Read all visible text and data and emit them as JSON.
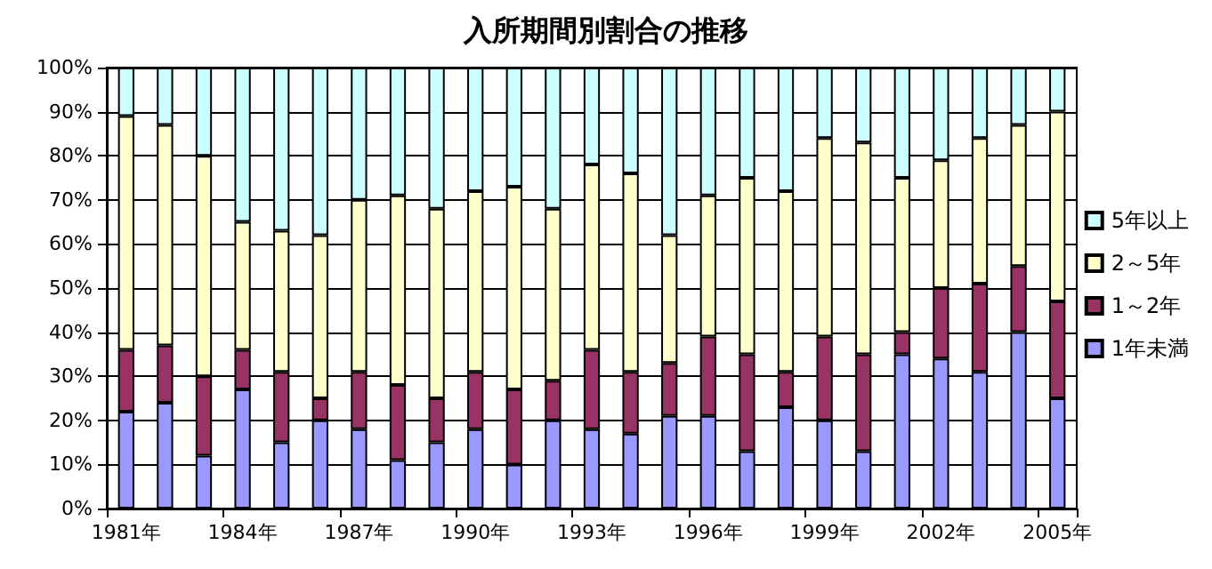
{
  "chart_data": {
    "type": "bar",
    "title": "入所期間別割合の推移",
    "stacked": true,
    "grid": "y",
    "legend": "right",
    "categories": [
      "1981年",
      null,
      null,
      "1984年",
      null,
      null,
      "1987年",
      null,
      null,
      "1990年",
      null,
      null,
      "1993年",
      null,
      null,
      "1996年",
      null,
      null,
      "1999年",
      null,
      null,
      "2002年",
      null,
      null,
      "2005年"
    ],
    "ylim": [
      0,
      100
    ],
    "yticks": [
      {
        "value": 0,
        "label": "0%"
      },
      {
        "value": 10,
        "label": "10%"
      },
      {
        "value": 20,
        "label": "20%"
      },
      {
        "value": 30,
        "label": "30%"
      },
      {
        "value": 40,
        "label": "40%"
      },
      {
        "value": 50,
        "label": "50%"
      },
      {
        "value": 60,
        "label": "60%"
      },
      {
        "value": 70,
        "label": "70%"
      },
      {
        "value": 80,
        "label": "80%"
      },
      {
        "value": 90,
        "label": "90%"
      },
      {
        "value": 100,
        "label": "100%"
      }
    ],
    "series": [
      {
        "name": "1年未満",
        "color": "#9999ff",
        "values": [
          22,
          24,
          12,
          27,
          15,
          20,
          18,
          11,
          15,
          18,
          10,
          20,
          18,
          17,
          21,
          21,
          13,
          23,
          20,
          13,
          35,
          34,
          31,
          40,
          25
        ]
      },
      {
        "name": "1～2年",
        "color": "#993366",
        "values": [
          14,
          13,
          18,
          9,
          16,
          5,
          13,
          17,
          10,
          13,
          17,
          9,
          18,
          14,
          12,
          18,
          22,
          8,
          19,
          22,
          5,
          16,
          20,
          15,
          22
        ]
      },
      {
        "name": "2～5年",
        "color": "#ffffcc",
        "values": [
          53,
          50,
          50,
          29,
          32,
          37,
          39,
          43,
          43,
          41,
          46,
          39,
          42,
          45,
          29,
          32,
          40,
          41,
          45,
          48,
          35,
          29,
          33,
          32,
          43
        ]
      },
      {
        "name": "5年以上",
        "color": "#ccffff",
        "values": [
          11,
          13,
          20,
          35,
          37,
          38,
          30,
          29,
          32,
          28,
          27,
          32,
          22,
          24,
          38,
          29,
          25,
          28,
          16,
          17,
          25,
          21,
          16,
          13,
          10
        ]
      }
    ]
  }
}
